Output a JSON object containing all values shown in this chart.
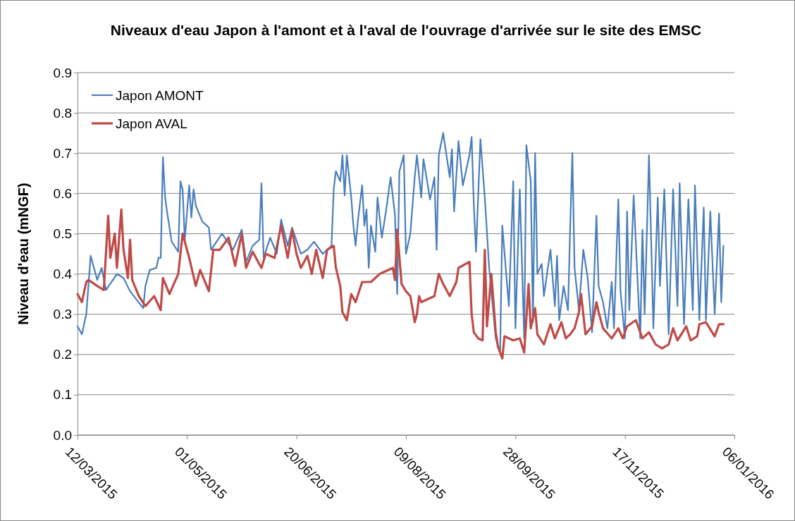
{
  "chart_data": {
    "type": "line",
    "title": "Niveaux d'eau Japon à l'amont et à l'aval de l'ouvrage d'arrivée sur le site des EMSC",
    "ylabel": "Niveau d'eau (mNGF)",
    "xlim": [
      "2015-03-12",
      "2016-01-06"
    ],
    "xticks": [
      {
        "value": "2015-03-12",
        "label": "12/03/2015"
      },
      {
        "value": "2015-05-01",
        "label": "01/05/2015"
      },
      {
        "value": "2015-06-20",
        "label": "20/06/2015"
      },
      {
        "value": "2015-08-09",
        "label": "09/08/2015"
      },
      {
        "value": "2015-09-28",
        "label": "28/09/2015"
      },
      {
        "value": "2015-11-17",
        "label": "17/11/2015"
      },
      {
        "value": "2016-01-06",
        "label": "06/01/2016"
      }
    ],
    "ylim": [
      0,
      0.9
    ],
    "yticks": [
      {
        "value": 0,
        "label": "0.0"
      },
      {
        "value": 0.1,
        "label": "0.1"
      },
      {
        "value": 0.2,
        "label": "0.2"
      },
      {
        "value": 0.3,
        "label": "0.3"
      },
      {
        "value": 0.4,
        "label": "0.4"
      },
      {
        "value": 0.5,
        "label": "0.5"
      },
      {
        "value": 0.6,
        "label": "0.6"
      },
      {
        "value": 0.7,
        "label": "0.7"
      },
      {
        "value": 0.8,
        "label": "0.8"
      },
      {
        "value": 0.9,
        "label": "0.9"
      }
    ],
    "grid": "y",
    "legend": "top left",
    "marker": "none",
    "line_style": "solid",
    "series": [
      {
        "name": "Japon AMONT",
        "color": "#4a7ebb",
        "x": [
          "2015-03-12",
          "2015-03-14",
          "2015-03-16",
          "2015-03-18",
          "2015-03-21",
          "2015-03-23",
          "2015-03-25",
          "2015-03-30",
          "2015-04-02",
          "2015-04-05",
          "2015-04-11",
          "2015-04-12",
          "2015-04-14",
          "2015-04-17",
          "2015-04-18",
          "2015-04-19",
          "2015-04-20",
          "2015-04-21",
          "2015-04-22",
          "2015-04-24",
          "2015-04-27",
          "2015-04-28",
          "2015-04-29",
          "2015-04-30",
          "2015-05-02",
          "2015-05-03",
          "2015-05-04",
          "2015-05-05",
          "2015-05-08",
          "2015-05-11",
          "2015-05-12",
          "2015-05-17",
          "2015-05-22",
          "2015-05-26",
          "2015-05-28",
          "2015-05-31",
          "2015-06-03",
          "2015-06-04",
          "2015-06-05",
          "2015-06-08",
          "2015-06-11",
          "2015-06-13",
          "2015-06-16",
          "2015-06-18",
          "2015-06-22",
          "2015-06-25",
          "2015-06-28",
          "2015-07-02",
          "2015-07-06",
          "2015-07-07",
          "2015-07-08",
          "2015-07-10",
          "2015-07-11",
          "2015-07-12",
          "2015-07-13",
          "2015-07-15",
          "2015-07-16",
          "2015-07-17",
          "2015-07-18",
          "2015-07-20",
          "2015-07-21",
          "2015-07-22",
          "2015-07-23",
          "2015-07-24",
          "2015-07-26",
          "2015-07-27",
          "2015-07-29",
          "2015-07-31",
          "2015-08-02",
          "2015-08-04",
          "2015-08-05",
          "2015-08-06",
          "2015-08-08",
          "2015-08-09",
          "2015-08-11",
          "2015-08-13",
          "2015-08-14",
          "2015-08-16",
          "2015-08-17",
          "2015-08-20",
          "2015-08-22",
          "2015-08-23",
          "2015-08-24",
          "2015-08-26",
          "2015-08-29",
          "2015-08-30",
          "2015-08-31",
          "2015-09-02",
          "2015-09-04",
          "2015-09-07",
          "2015-09-08",
          "2015-09-09",
          "2015-09-10",
          "2015-09-12",
          "2015-09-14",
          "2015-09-16",
          "2015-09-19",
          "2015-09-21",
          "2015-09-22",
          "2015-09-25",
          "2015-09-27",
          "2015-09-28",
          "2015-09-30",
          "2015-10-02",
          "2015-10-03",
          "2015-10-05",
          "2015-10-06",
          "2015-10-07",
          "2015-10-08",
          "2015-10-10",
          "2015-10-11",
          "2015-10-14",
          "2015-10-16",
          "2015-10-17",
          "2015-10-18",
          "2015-10-20",
          "2015-10-22",
          "2015-10-23",
          "2015-10-24",
          "2015-10-25",
          "2015-10-27",
          "2015-10-29",
          "2015-10-31",
          "2015-11-02",
          "2015-11-04",
          "2015-11-05",
          "2015-11-07",
          "2015-11-09",
          "2015-11-11",
          "2015-11-12",
          "2015-11-14",
          "2015-11-15",
          "2015-11-17",
          "2015-11-18",
          "2015-11-19",
          "2015-11-21",
          "2015-11-24",
          "2015-11-25",
          "2015-11-26",
          "2015-11-28",
          "2015-11-30",
          "2015-12-02",
          "2015-12-03",
          "2015-12-05",
          "2015-12-07",
          "2015-12-09",
          "2015-12-11",
          "2015-12-12",
          "2015-12-14",
          "2015-12-16",
          "2015-12-18",
          "2015-12-19",
          "2015-12-21",
          "2015-12-23",
          "2015-12-24",
          "2015-12-26",
          "2015-12-28",
          "2015-12-30",
          "2015-12-31",
          "2016-01-01"
        ],
        "values": [
          0.27,
          0.25,
          0.3,
          0.445,
          0.385,
          0.415,
          0.36,
          0.4,
          0.39,
          0.357,
          0.315,
          0.37,
          0.41,
          0.415,
          0.44,
          0.44,
          0.69,
          0.59,
          0.55,
          0.48,
          0.455,
          0.63,
          0.61,
          0.485,
          0.62,
          0.54,
          0.61,
          0.57,
          0.53,
          0.515,
          0.46,
          0.5,
          0.46,
          0.51,
          0.43,
          0.47,
          0.485,
          0.625,
          0.44,
          0.49,
          0.45,
          0.535,
          0.47,
          0.515,
          0.45,
          0.46,
          0.48,
          0.45,
          0.47,
          0.61,
          0.655,
          0.63,
          0.695,
          0.595,
          0.695,
          0.59,
          0.52,
          0.47,
          0.53,
          0.62,
          0.52,
          0.56,
          0.415,
          0.52,
          0.455,
          0.59,
          0.49,
          0.56,
          0.64,
          0.545,
          0.35,
          0.655,
          0.695,
          0.45,
          0.5,
          0.64,
          0.695,
          0.59,
          0.685,
          0.585,
          0.64,
          0.46,
          0.695,
          0.75,
          0.64,
          0.71,
          0.555,
          0.73,
          0.62,
          0.695,
          0.74,
          0.57,
          0.455,
          0.735,
          0.59,
          0.415,
          0.24,
          0.205,
          0.52,
          0.32,
          0.63,
          0.265,
          0.61,
          0.24,
          0.72,
          0.63,
          0.28,
          0.7,
          0.4,
          0.425,
          0.345,
          0.46,
          0.32,
          0.445,
          0.285,
          0.37,
          0.31,
          0.515,
          0.7,
          0.415,
          0.31,
          0.46,
          0.39,
          0.255,
          0.545,
          0.37,
          0.33,
          0.265,
          0.38,
          0.265,
          0.585,
          0.357,
          0.24,
          0.555,
          0.31,
          0.595,
          0.24,
          0.51,
          0.3,
          0.695,
          0.265,
          0.59,
          0.37,
          0.61,
          0.25,
          0.61,
          0.32,
          0.625,
          0.275,
          0.585,
          0.31,
          0.62,
          0.285,
          0.565,
          0.285,
          0.555,
          0.3,
          0.55,
          0.33,
          0.47
        ]
      },
      {
        "name": "Japon AVAL",
        "color": "#be4b48",
        "x": [
          "2015-03-12",
          "2015-03-14",
          "2015-03-16",
          "2015-03-17",
          "2015-03-21",
          "2015-03-24",
          "2015-03-26",
          "2015-03-27",
          "2015-03-29",
          "2015-03-30",
          "2015-04-01",
          "2015-04-02",
          "2015-04-04",
          "2015-04-05",
          "2015-04-06",
          "2015-04-09",
          "2015-04-12",
          "2015-04-16",
          "2015-04-19",
          "2015-04-20",
          "2015-04-23",
          "2015-04-27",
          "2015-04-28",
          "2015-04-29",
          "2015-05-02",
          "2015-05-05",
          "2015-05-07",
          "2015-05-11",
          "2015-05-13",
          "2015-05-16",
          "2015-05-20",
          "2015-05-23",
          "2015-05-26",
          "2015-05-28",
          "2015-05-31",
          "2015-06-04",
          "2015-06-06",
          "2015-06-10",
          "2015-06-13",
          "2015-06-16",
          "2015-06-18",
          "2015-06-20",
          "2015-06-22",
          "2015-06-25",
          "2015-06-27",
          "2015-06-29",
          "2015-07-02",
          "2015-07-04",
          "2015-07-07",
          "2015-07-08",
          "2015-07-10",
          "2015-07-11",
          "2015-07-13",
          "2015-07-15",
          "2015-07-17",
          "2015-07-20",
          "2015-07-24",
          "2015-07-28",
          "2015-08-03",
          "2015-08-04",
          "2015-08-05",
          "2015-08-07",
          "2015-08-09",
          "2015-08-11",
          "2015-08-13",
          "2015-08-14",
          "2015-08-15",
          "2015-08-16",
          "2015-08-22",
          "2015-08-24",
          "2015-08-26",
          "2015-08-29",
          "2015-09-01",
          "2015-09-02",
          "2015-09-07",
          "2015-09-08",
          "2015-09-09",
          "2015-09-11",
          "2015-09-13",
          "2015-09-14",
          "2015-09-15",
          "2015-09-17",
          "2015-09-19",
          "2015-09-20",
          "2015-09-22",
          "2015-09-23",
          "2015-09-27",
          "2015-09-30",
          "2015-10-02",
          "2015-10-04",
          "2015-10-05",
          "2015-10-07",
          "2015-10-08",
          "2015-10-11",
          "2015-10-14",
          "2015-10-16",
          "2015-10-19",
          "2015-10-21",
          "2015-10-23",
          "2015-10-25",
          "2015-10-27",
          "2015-10-28",
          "2015-10-30",
          "2015-11-02",
          "2015-11-04",
          "2015-11-05",
          "2015-11-07",
          "2015-11-11",
          "2015-11-14",
          "2015-11-16",
          "2015-11-18",
          "2015-11-22",
          "2015-11-25",
          "2015-11-28",
          "2015-12-01",
          "2015-12-04",
          "2015-12-07",
          "2015-12-09",
          "2015-12-11",
          "2015-12-15",
          "2015-12-17",
          "2015-12-20",
          "2015-12-21",
          "2015-12-24",
          "2015-12-28",
          "2015-12-30",
          "2016-01-01"
        ],
        "values": [
          0.35,
          0.33,
          0.38,
          0.385,
          0.37,
          0.36,
          0.545,
          0.44,
          0.5,
          0.415,
          0.56,
          0.46,
          0.39,
          0.485,
          0.385,
          0.345,
          0.32,
          0.345,
          0.31,
          0.39,
          0.35,
          0.4,
          0.45,
          0.5,
          0.44,
          0.37,
          0.41,
          0.357,
          0.46,
          0.46,
          0.49,
          0.42,
          0.5,
          0.415,
          0.455,
          0.415,
          0.45,
          0.44,
          0.52,
          0.44,
          0.51,
          0.45,
          0.415,
          0.445,
          0.4,
          0.46,
          0.39,
          0.46,
          0.47,
          0.415,
          0.37,
          0.305,
          0.285,
          0.35,
          0.33,
          0.38,
          0.38,
          0.4,
          0.415,
          0.385,
          0.51,
          0.375,
          0.357,
          0.345,
          0.28,
          0.3,
          0.345,
          0.33,
          0.345,
          0.4,
          0.375,
          0.345,
          0.38,
          0.415,
          0.43,
          0.3,
          0.255,
          0.24,
          0.235,
          0.46,
          0.27,
          0.4,
          0.255,
          0.22,
          0.19,
          0.245,
          0.235,
          0.24,
          0.205,
          0.375,
          0.265,
          0.315,
          0.25,
          0.225,
          0.275,
          0.24,
          0.28,
          0.24,
          0.25,
          0.265,
          0.305,
          0.35,
          0.25,
          0.27,
          0.33,
          0.305,
          0.265,
          0.24,
          0.265,
          0.24,
          0.27,
          0.285,
          0.24,
          0.255,
          0.225,
          0.215,
          0.225,
          0.265,
          0.235,
          0.27,
          0.235,
          0.245,
          0.275,
          0.28,
          0.245,
          0.275,
          0.275
        ]
      }
    ]
  }
}
